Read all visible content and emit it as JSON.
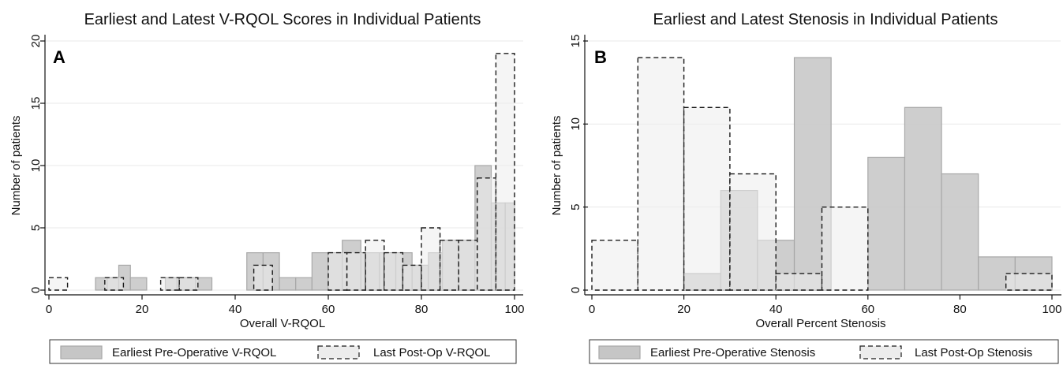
{
  "chart_data": [
    {
      "type": "bar",
      "panel_label": "A",
      "title": "Earliest and Latest V-RQOL Scores in Individual Patients",
      "xlabel": "Overall V-RQOL",
      "ylabel": "Number of patients",
      "xlim": [
        0,
        100
      ],
      "ylim": [
        0,
        20
      ],
      "xticks": [
        0,
        20,
        40,
        60,
        80,
        100
      ],
      "yticks": [
        0,
        5,
        10,
        15,
        20
      ],
      "grid": true,
      "legend_position": "bottom",
      "series": [
        {
          "name": "Earliest Pre-Operative V-RQOL",
          "style": "solid",
          "bins": [
            {
              "start": 10,
              "end": 12.5,
              "count": 1
            },
            {
              "start": 12.5,
              "end": 15,
              "count": 1
            },
            {
              "start": 15,
              "end": 17.5,
              "count": 2
            },
            {
              "start": 17.5,
              "end": 21,
              "count": 1
            },
            {
              "start": 25,
              "end": 27.5,
              "count": 1
            },
            {
              "start": 27.5,
              "end": 31.5,
              "count": 1
            },
            {
              "start": 31.5,
              "end": 35,
              "count": 1
            },
            {
              "start": 42.5,
              "end": 46,
              "count": 3
            },
            {
              "start": 46,
              "end": 49.5,
              "count": 3
            },
            {
              "start": 49.5,
              "end": 53,
              "count": 1
            },
            {
              "start": 53,
              "end": 56.5,
              "count": 1
            },
            {
              "start": 56.5,
              "end": 60,
              "count": 3
            },
            {
              "start": 60,
              "end": 63,
              "count": 3
            },
            {
              "start": 63,
              "end": 67,
              "count": 4
            },
            {
              "start": 67,
              "end": 71,
              "count": 3
            },
            {
              "start": 71,
              "end": 74.5,
              "count": 3
            },
            {
              "start": 74.5,
              "end": 78,
              "count": 3
            },
            {
              "start": 78,
              "end": 81.5,
              "count": 2
            },
            {
              "start": 81.5,
              "end": 84.5,
              "count": 3
            },
            {
              "start": 84.5,
              "end": 88,
              "count": 4
            },
            {
              "start": 88,
              "end": 91.5,
              "count": 4
            },
            {
              "start": 91.5,
              "end": 95,
              "count": 10
            },
            {
              "start": 95,
              "end": 98,
              "count": 7
            },
            {
              "start": 98,
              "end": 100,
              "count": 7
            }
          ]
        },
        {
          "name": "Last Post-Op V-RQOL",
          "style": "dashed",
          "bins": [
            {
              "start": 0,
              "end": 4,
              "count": 1
            },
            {
              "start": 12,
              "end": 16,
              "count": 1
            },
            {
              "start": 24,
              "end": 28,
              "count": 1
            },
            {
              "start": 28,
              "end": 32,
              "count": 1
            },
            {
              "start": 44,
              "end": 48,
              "count": 2
            },
            {
              "start": 60,
              "end": 64,
              "count": 3
            },
            {
              "start": 64,
              "end": 68,
              "count": 3
            },
            {
              "start": 68,
              "end": 72,
              "count": 4
            },
            {
              "start": 72,
              "end": 76,
              "count": 3
            },
            {
              "start": 76,
              "end": 80,
              "count": 2
            },
            {
              "start": 80,
              "end": 84,
              "count": 5
            },
            {
              "start": 84,
              "end": 88,
              "count": 4
            },
            {
              "start": 88,
              "end": 92,
              "count": 4
            },
            {
              "start": 92,
              "end": 96,
              "count": 9
            },
            {
              "start": 96,
              "end": 100,
              "count": 19
            }
          ]
        }
      ]
    },
    {
      "type": "bar",
      "panel_label": "B",
      "title": "Earliest and Latest Stenosis in Individual Patients",
      "xlabel": "Overall Percent Stenosis",
      "ylabel": "Number of patients",
      "xlim": [
        0,
        100
      ],
      "ylim": [
        0,
        15
      ],
      "xticks": [
        0,
        20,
        40,
        60,
        80,
        100
      ],
      "yticks": [
        0,
        5,
        10,
        15
      ],
      "grid": true,
      "legend_position": "bottom",
      "series": [
        {
          "name": "Earliest Pre-Operative Stenosis",
          "style": "solid",
          "bins": [
            {
              "start": 20,
              "end": 28,
              "count": 1
            },
            {
              "start": 28,
              "end": 36,
              "count": 6
            },
            {
              "start": 36,
              "end": 44,
              "count": 3
            },
            {
              "start": 44,
              "end": 52,
              "count": 14
            },
            {
              "start": 60,
              "end": 68,
              "count": 8
            },
            {
              "start": 68,
              "end": 76,
              "count": 11
            },
            {
              "start": 76,
              "end": 84,
              "count": 7
            },
            {
              "start": 84,
              "end": 92,
              "count": 2
            },
            {
              "start": 92,
              "end": 100,
              "count": 2
            }
          ]
        },
        {
          "name": "Last Post-Op Stenosis",
          "style": "dashed",
          "bins": [
            {
              "start": 0,
              "end": 10,
              "count": 3
            },
            {
              "start": 10,
              "end": 20,
              "count": 14
            },
            {
              "start": 20,
              "end": 30,
              "count": 11
            },
            {
              "start": 30,
              "end": 40,
              "count": 7
            },
            {
              "start": 40,
              "end": 50,
              "count": 1
            },
            {
              "start": 50,
              "end": 60,
              "count": 5
            },
            {
              "start": 90,
              "end": 100,
              "count": 1
            }
          ]
        }
      ]
    }
  ],
  "colors": {
    "solid_fill": "#c6c6c6",
    "solid_stroke": "#a8a8a8",
    "dashed_fill": "#ececec",
    "dashed_stroke": "#1a1a1a",
    "grid": "#e8e8e8",
    "axis": "#111111"
  }
}
